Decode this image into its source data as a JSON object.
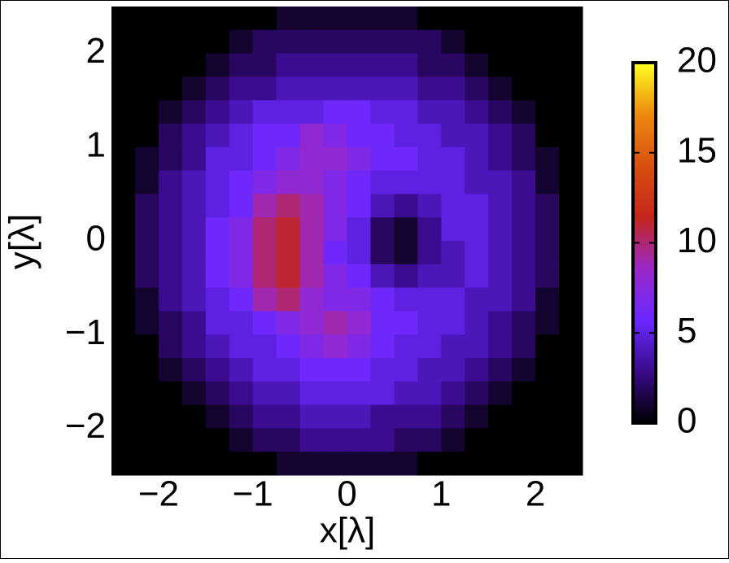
{
  "chart_data": {
    "type": "heatmap",
    "xlabel": "x[λ]",
    "ylabel": "y[λ]",
    "x": [
      -2.375,
      -2.125,
      -1.875,
      -1.625,
      -1.375,
      -1.125,
      -0.875,
      -0.625,
      -0.375,
      -0.125,
      0.125,
      0.375,
      0.625,
      0.875,
      1.125,
      1.375,
      1.625,
      1.875,
      2.125,
      2.375
    ],
    "y": [
      2.375,
      2.125,
      1.875,
      1.625,
      1.375,
      1.125,
      0.875,
      0.625,
      0.375,
      0.125,
      -0.125,
      -0.375,
      -0.625,
      -0.875,
      -1.125,
      -1.375,
      -1.625,
      -1.875,
      -2.125,
      -2.375
    ],
    "z": [
      [
        0,
        0,
        0,
        0,
        0,
        0,
        0,
        1,
        1,
        1,
        1,
        1,
        1,
        0,
        0,
        0,
        0,
        0,
        0,
        0
      ],
      [
        0,
        0,
        0,
        0,
        0,
        1,
        2,
        2,
        2,
        2,
        2,
        2,
        2,
        2,
        1,
        0,
        0,
        0,
        0,
        0
      ],
      [
        0,
        0,
        0,
        0,
        1,
        2,
        2,
        3,
        3,
        3,
        3,
        3,
        3,
        2,
        2,
        1,
        0,
        0,
        0,
        0
      ],
      [
        0,
        0,
        0,
        1,
        2,
        3,
        3,
        4,
        4,
        4,
        4,
        4,
        4,
        3,
        3,
        2,
        1,
        0,
        0,
        0
      ],
      [
        0,
        0,
        1,
        2,
        3,
        4,
        5,
        5,
        5,
        6,
        6,
        5,
        5,
        4,
        4,
        3,
        2,
        1,
        0,
        0
      ],
      [
        0,
        0,
        2,
        3,
        4,
        5,
        6,
        6,
        8,
        7,
        6,
        6,
        5,
        5,
        4,
        4,
        3,
        2,
        0,
        0
      ],
      [
        0,
        1,
        2,
        3,
        5,
        5,
        6,
        7,
        8,
        8,
        7,
        6,
        6,
        5,
        5,
        4,
        3,
        2,
        1,
        0
      ],
      [
        0,
        1,
        3,
        4,
        5,
        6,
        7,
        8,
        8,
        7,
        6,
        5,
        5,
        5,
        5,
        4,
        4,
        3,
        1,
        0
      ],
      [
        0,
        2,
        3,
        4,
        5,
        6,
        9,
        10,
        9,
        7,
        6,
        4,
        3,
        4,
        5,
        5,
        4,
        3,
        2,
        0
      ],
      [
        0,
        2,
        3,
        4,
        6,
        7,
        10,
        11,
        9,
        7,
        5,
        2,
        1,
        3,
        5,
        5,
        4,
        3,
        2,
        0
      ],
      [
        0,
        2,
        3,
        4,
        6,
        7,
        10,
        11,
        9,
        6,
        5,
        2,
        1,
        3,
        4,
        5,
        4,
        3,
        2,
        0
      ],
      [
        0,
        2,
        3,
        4,
        6,
        7,
        10,
        11,
        9,
        7,
        6,
        4,
        3,
        4,
        4,
        5,
        4,
        3,
        2,
        0
      ],
      [
        0,
        1,
        3,
        4,
        5,
        6,
        9,
        10,
        8,
        7,
        7,
        6,
        5,
        5,
        5,
        4,
        4,
        3,
        1,
        0
      ],
      [
        0,
        1,
        2,
        3,
        5,
        5,
        6,
        7,
        8,
        9,
        8,
        6,
        6,
        5,
        5,
        4,
        3,
        2,
        1,
        0
      ],
      [
        0,
        0,
        2,
        3,
        4,
        5,
        5,
        6,
        7,
        8,
        7,
        6,
        5,
        5,
        4,
        4,
        3,
        2,
        0,
        0
      ],
      [
        0,
        0,
        1,
        2,
        3,
        4,
        5,
        5,
        6,
        6,
        6,
        5,
        5,
        4,
        4,
        3,
        2,
        1,
        0,
        0
      ],
      [
        0,
        0,
        0,
        1,
        2,
        3,
        4,
        4,
        5,
        5,
        5,
        5,
        4,
        4,
        3,
        2,
        1,
        0,
        0,
        0
      ],
      [
        0,
        0,
        0,
        0,
        1,
        2,
        3,
        3,
        4,
        4,
        4,
        3,
        3,
        3,
        2,
        1,
        0,
        0,
        0,
        0
      ],
      [
        0,
        0,
        0,
        0,
        0,
        1,
        2,
        2,
        3,
        3,
        3,
        3,
        2,
        2,
        1,
        0,
        0,
        0,
        0,
        0
      ],
      [
        0,
        0,
        0,
        0,
        0,
        0,
        0,
        1,
        1,
        1,
        1,
        1,
        1,
        0,
        0,
        0,
        0,
        0,
        0,
        0
      ]
    ],
    "xlim": [
      -2.5,
      2.5
    ],
    "ylim": [
      -2.5,
      2.5
    ],
    "xticks": [
      {
        "value": -2,
        "label": "−2"
      },
      {
        "value": -1,
        "label": "−1"
      },
      0,
      1,
      2
    ],
    "yticks": [
      {
        "value": -2,
        "label": "−2"
      },
      {
        "value": -1,
        "label": "−1"
      },
      0,
      1,
      2
    ],
    "zlim": [
      0,
      20
    ],
    "zticks": [
      0,
      5,
      10,
      15,
      20
    ],
    "colormap": [
      "#000000",
      "#3a0a8a",
      "#6a28ff",
      "#9a28c8",
      "#c4261c",
      "#d85010",
      "#ec8a10",
      "#ffff20"
    ],
    "background": "#000000"
  }
}
